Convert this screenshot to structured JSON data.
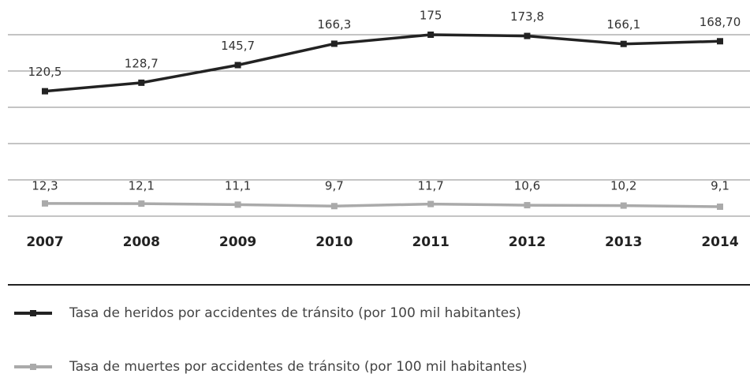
{
  "chart_data": {
    "type": "line",
    "categories": [
      "2007",
      "2008",
      "2009",
      "2010",
      "2011",
      "2012",
      "2013",
      "2014"
    ],
    "series": [
      {
        "name": "Tasa de heridos por accidentes de tránsito (por 100 mil habitantes)",
        "color": "#222222",
        "values": [
          120.5,
          128.7,
          145.7,
          166.3,
          175,
          173.8,
          166.1,
          168.7
        ],
        "value_labels": [
          "120,5",
          "128,7",
          "145,7",
          "166,3",
          "175",
          "173,8",
          "166,1",
          "168,70"
        ]
      },
      {
        "name": "Tasa de muertes por accidentes de tránsito (por 100 mil habitantes)",
        "color": "#aaaaaa",
        "values": [
          12.3,
          12.1,
          11.1,
          9.7,
          11.7,
          10.6,
          10.2,
          9.1
        ],
        "value_labels": [
          "12,3",
          "12,1",
          "11,1",
          "9,7",
          "11,7",
          "10,6",
          "10,2",
          "9,1"
        ]
      }
    ],
    "ylim": [
      0,
      175
    ],
    "yticks": [
      0,
      35,
      70,
      105,
      140,
      175
    ],
    "grid": true,
    "legend": "bottom"
  }
}
